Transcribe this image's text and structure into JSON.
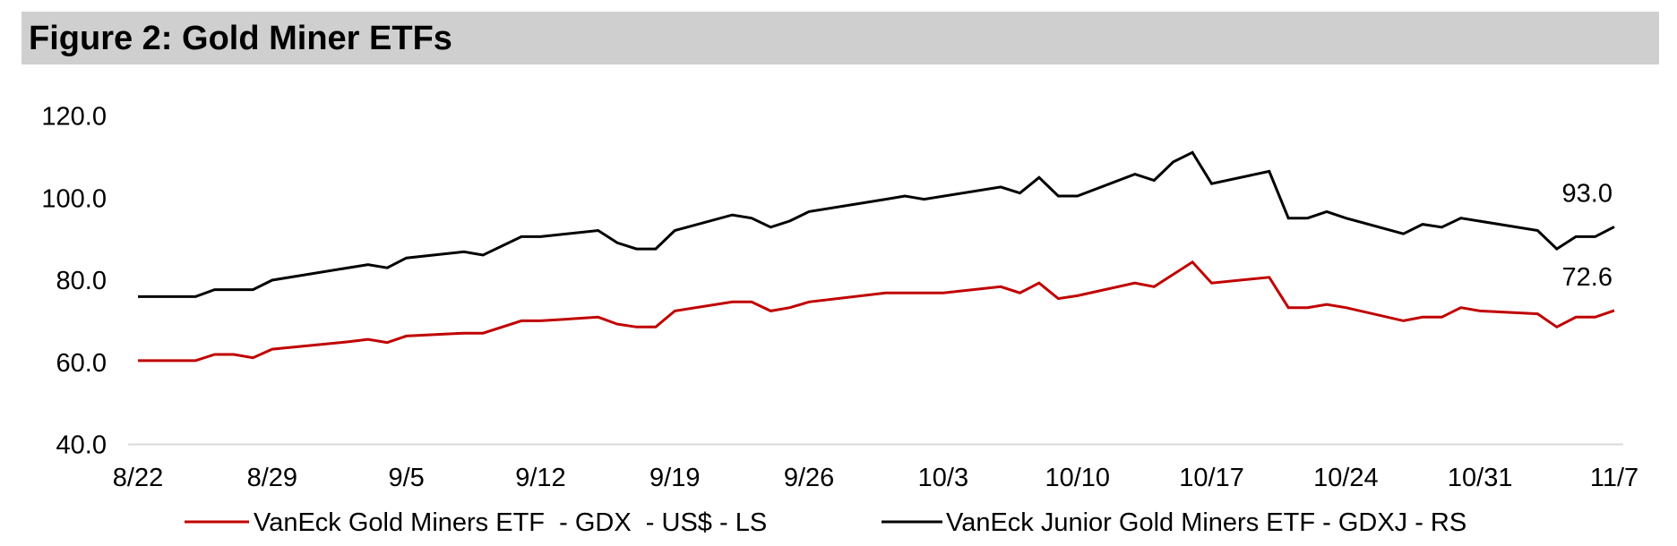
{
  "figure": {
    "title": "Figure 2: Gold Miner ETFs"
  },
  "chart_data": {
    "type": "line",
    "title": "Figure 2: Gold Miner ETFs",
    "xlabel": "",
    "ylabel": "",
    "ylim": [
      40,
      120
    ],
    "yticks": [
      "40.0",
      "60.0",
      "80.0",
      "100.0",
      "120.0"
    ],
    "ytick_values": [
      40,
      60,
      80,
      100,
      120
    ],
    "xlim": [
      0,
      77
    ],
    "xticks": [
      "8/22",
      "8/29",
      "9/5",
      "9/12",
      "9/19",
      "9/26",
      "10/3",
      "10/10",
      "10/17",
      "10/24",
      "10/31",
      "11/7"
    ],
    "xtick_values": [
      0,
      7,
      14,
      21,
      28,
      35,
      42,
      49,
      56,
      63,
      70,
      77
    ],
    "grid": false,
    "legend_position": "bottom",
    "series": [
      {
        "name": "VanEck Gold Miners ETF  - GDX  - US$ - LS",
        "color": "#c00000",
        "end_label": "72.6",
        "points": [
          [
            0,
            60.4
          ],
          [
            3,
            60.4
          ],
          [
            4,
            61.9
          ],
          [
            5,
            61.9
          ],
          [
            6,
            61.1
          ],
          [
            7,
            63.2
          ],
          [
            11,
            65.0
          ],
          [
            12,
            65.6
          ],
          [
            13,
            64.8
          ],
          [
            14,
            66.4
          ],
          [
            17,
            67.1
          ],
          [
            18,
            67.1
          ],
          [
            20,
            70.1
          ],
          [
            21,
            70.1
          ],
          [
            24,
            71.0
          ],
          [
            25,
            69.3
          ],
          [
            26,
            68.6
          ],
          [
            27,
            68.6
          ],
          [
            28,
            72.5
          ],
          [
            31,
            74.7
          ],
          [
            32,
            74.7
          ],
          [
            33,
            72.5
          ],
          [
            34,
            73.3
          ],
          [
            35,
            74.7
          ],
          [
            39,
            76.9
          ],
          [
            42,
            76.9
          ],
          [
            45,
            78.4
          ],
          [
            46,
            76.9
          ],
          [
            47,
            79.3
          ],
          [
            48,
            75.5
          ],
          [
            49,
            76.2
          ],
          [
            52,
            79.3
          ],
          [
            53,
            78.4
          ],
          [
            55,
            84.4
          ],
          [
            56,
            79.3
          ],
          [
            59,
            80.7
          ],
          [
            60,
            73.3
          ],
          [
            61,
            73.3
          ],
          [
            62,
            74.1
          ],
          [
            63,
            73.3
          ],
          [
            66,
            70.1
          ],
          [
            67,
            71.0
          ],
          [
            68,
            71.0
          ],
          [
            69,
            73.3
          ],
          [
            70,
            72.5
          ],
          [
            73,
            71.8
          ],
          [
            74,
            68.6
          ],
          [
            75,
            71.0
          ],
          [
            76,
            71.0
          ],
          [
            77,
            72.6
          ]
        ]
      },
      {
        "name": "VanEck Junior Gold Miners ETF - GDXJ - RS",
        "color": "#000000",
        "end_label": "93.0",
        "points": [
          [
            0,
            76.0
          ],
          [
            3,
            76.0
          ],
          [
            4,
            77.7
          ],
          [
            6,
            77.7
          ],
          [
            7,
            80.0
          ],
          [
            12,
            83.8
          ],
          [
            13,
            83.0
          ],
          [
            14,
            85.4
          ],
          [
            17,
            86.9
          ],
          [
            18,
            86.1
          ],
          [
            20,
            90.6
          ],
          [
            21,
            90.6
          ],
          [
            24,
            92.1
          ],
          [
            25,
            89.1
          ],
          [
            26,
            87.6
          ],
          [
            27,
            87.6
          ],
          [
            28,
            92.1
          ],
          [
            31,
            95.9
          ],
          [
            32,
            95.1
          ],
          [
            33,
            92.9
          ],
          [
            34,
            94.4
          ],
          [
            35,
            96.7
          ],
          [
            39,
            99.7
          ],
          [
            40,
            100.5
          ],
          [
            41,
            99.7
          ],
          [
            45,
            102.7
          ],
          [
            46,
            101.2
          ],
          [
            47,
            105.0
          ],
          [
            48,
            100.5
          ],
          [
            49,
            100.5
          ],
          [
            52,
            105.8
          ],
          [
            53,
            104.3
          ],
          [
            54,
            108.8
          ],
          [
            55,
            111.1
          ],
          [
            56,
            103.5
          ],
          [
            59,
            106.5
          ],
          [
            60,
            95.1
          ],
          [
            61,
            95.1
          ],
          [
            62,
            96.7
          ],
          [
            63,
            95.1
          ],
          [
            66,
            91.3
          ],
          [
            67,
            93.6
          ],
          [
            68,
            92.9
          ],
          [
            69,
            95.1
          ],
          [
            73,
            92.1
          ],
          [
            74,
            87.6
          ],
          [
            75,
            90.6
          ],
          [
            76,
            90.6
          ],
          [
            77,
            93.0
          ]
        ]
      }
    ]
  }
}
